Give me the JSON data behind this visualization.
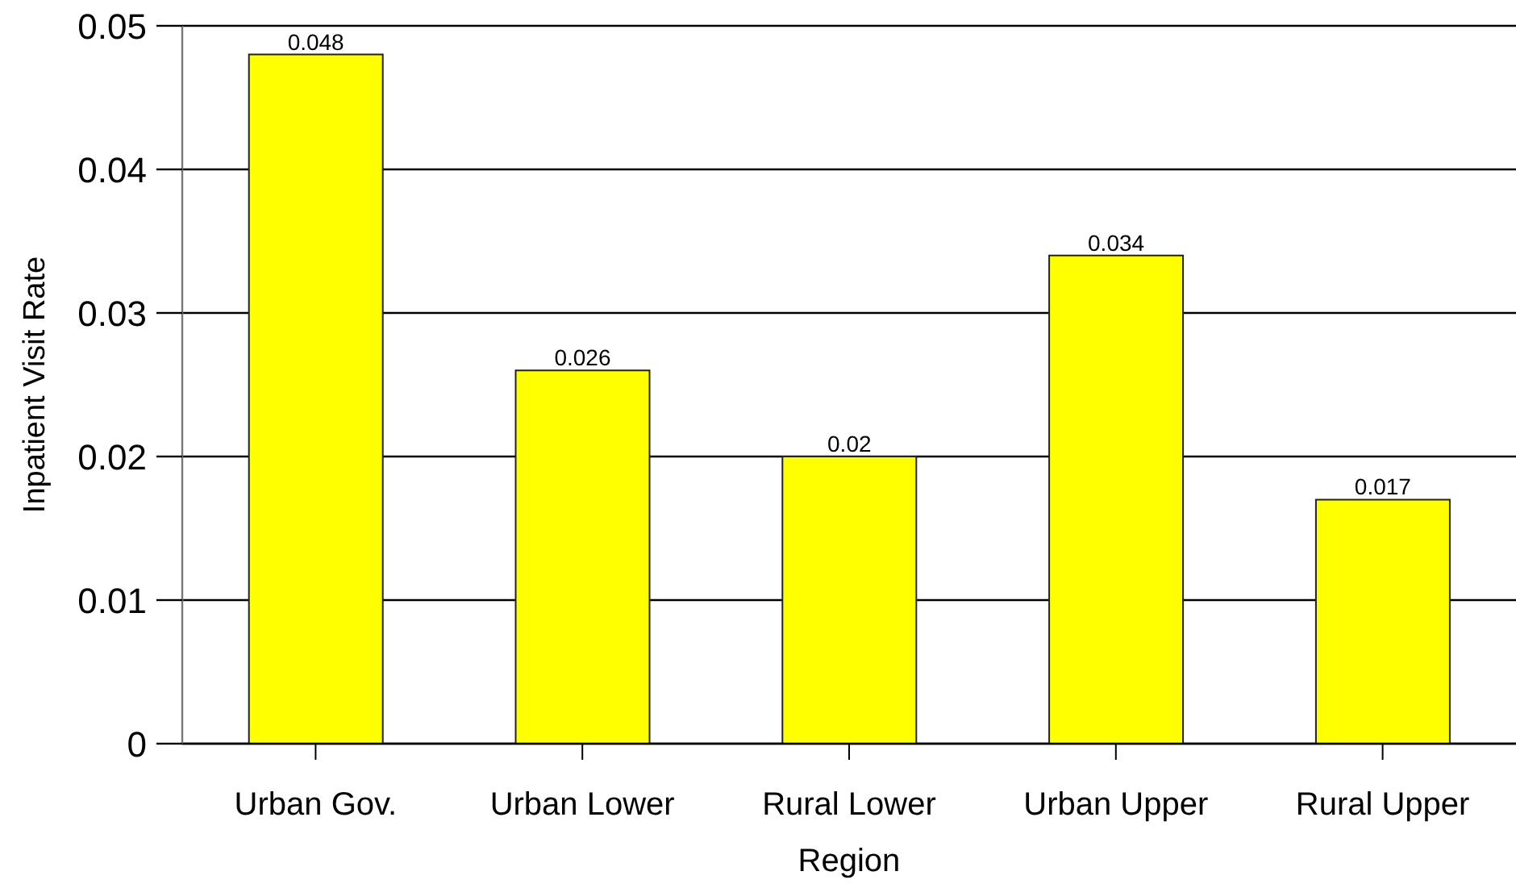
{
  "chart_data": {
    "type": "bar",
    "xlabel": "Region",
    "ylabel": "Inpatient Visit Rate",
    "categories": [
      "Urban Gov.",
      "Urban Lower",
      "Rural Lower",
      "Urban Upper",
      "Rural Upper"
    ],
    "values": [
      0.048,
      0.026,
      0.02,
      0.034,
      0.017
    ],
    "color": "#ffff00",
    "ylim": [
      0,
      0.05
    ],
    "yticks": [
      0,
      0.01,
      0.02,
      0.03,
      0.04,
      0.05
    ],
    "grid": "y",
    "data_labels": true
  }
}
